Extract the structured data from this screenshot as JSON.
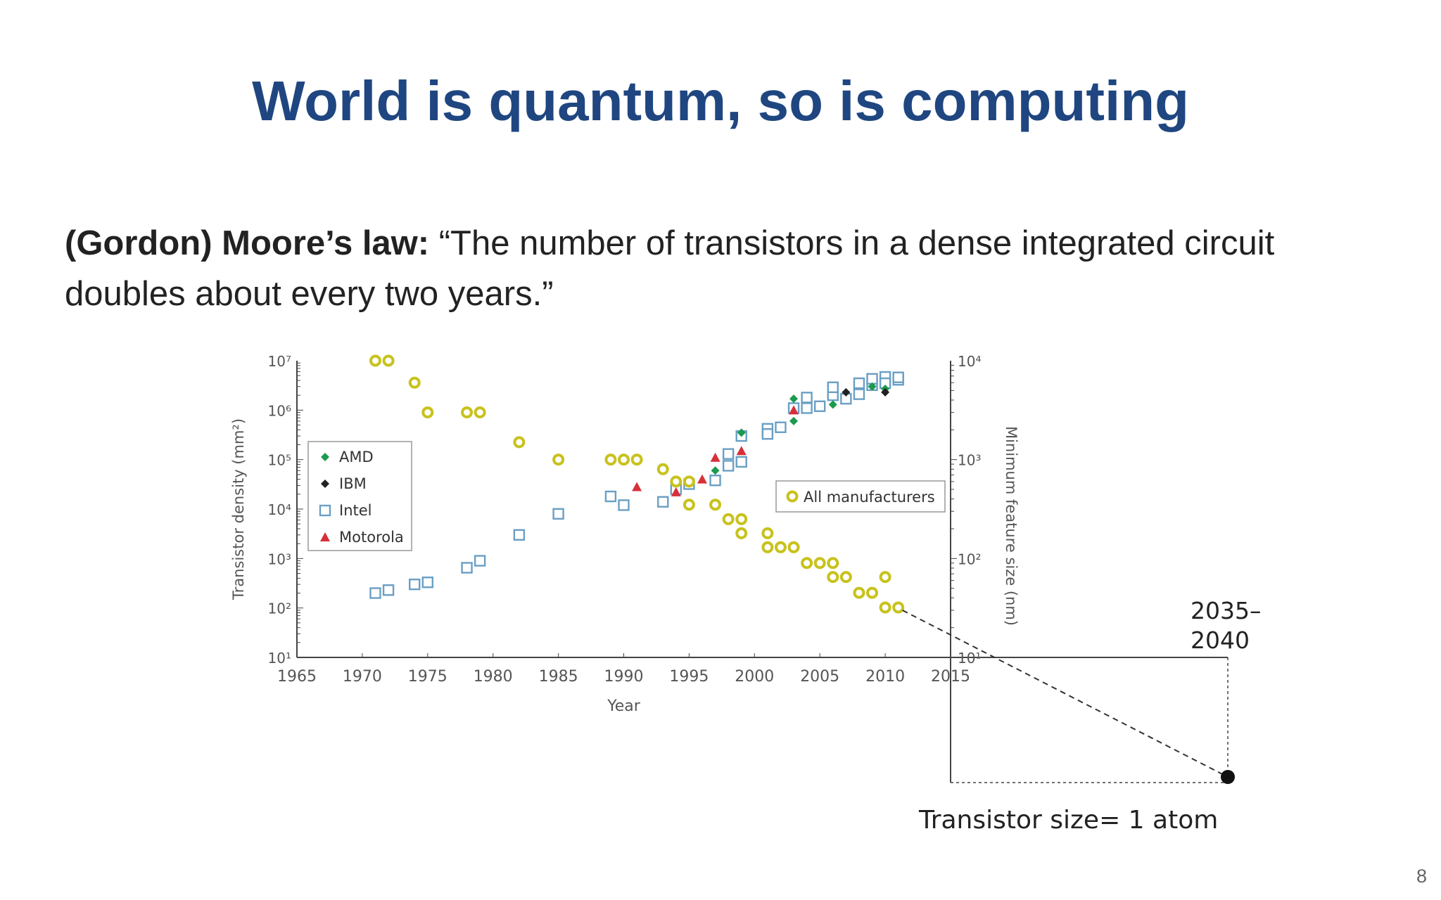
{
  "slide": {
    "title": "World is quantum, so is computing",
    "body_bold": "(Gordon) Moore’s law:",
    "body_quote": " “The number of transistors in a dense integrated circuit doubles about every two years.”",
    "page_number": "8"
  },
  "chart_data": {
    "type": "scatter",
    "xlabel": "Year",
    "ylabel": "Transistor density (mm²)",
    "y2label": "Minimum feature size (nm)",
    "xlim": [
      1965,
      2015
    ],
    "ylim": [
      10,
      10000000
    ],
    "y2lim": [
      10,
      10000
    ],
    "log_y": true,
    "x_ticks": [
      "1965",
      "1970",
      "1975",
      "1980",
      "1985",
      "1990",
      "1995",
      "2000",
      "2005",
      "2010",
      "2015"
    ],
    "y_ticks": [
      "10¹",
      "10²",
      "10³",
      "10⁴",
      "10⁵",
      "10⁶",
      "10⁷"
    ],
    "y2_ticks": [
      "10¹",
      "10²",
      "10³",
      "10⁴"
    ],
    "legend_left": [
      "AMD",
      "IBM",
      "Intel",
      "Motorola"
    ],
    "legend_right": [
      "All manufacturers"
    ],
    "colors": {
      "AMD": "#1c9a4e",
      "IBM": "#222222",
      "Intel": "#6a9fc4",
      "Motorola": "#d6303a",
      "All manufacturers": "#c8c21c"
    },
    "series": [
      {
        "name": "Intel",
        "axis": "left",
        "marker": "square",
        "points": [
          [
            1971,
            200
          ],
          [
            1972,
            230
          ],
          [
            1974,
            300
          ],
          [
            1975,
            330
          ],
          [
            1978,
            650
          ],
          [
            1979,
            900
          ],
          [
            1982,
            3000
          ],
          [
            1985,
            8000
          ],
          [
            1989,
            18000
          ],
          [
            1990,
            12000
          ],
          [
            1993,
            14000
          ],
          [
            1994,
            25000
          ],
          [
            1995,
            32000
          ],
          [
            1997,
            38000
          ],
          [
            1998,
            75000
          ],
          [
            1998,
            130000
          ],
          [
            1999,
            90000
          ],
          [
            1999,
            300000
          ],
          [
            2001,
            420000
          ],
          [
            2001,
            330000
          ],
          [
            2002,
            450000
          ],
          [
            2003,
            1100000
          ],
          [
            2004,
            1800000
          ],
          [
            2004,
            1100000
          ],
          [
            2005,
            1200000
          ],
          [
            2006,
            2000000
          ],
          [
            2006,
            2900000
          ],
          [
            2007,
            1700000
          ],
          [
            2008,
            2100000
          ],
          [
            2008,
            3500000
          ],
          [
            2009,
            3200000
          ],
          [
            2009,
            4300000
          ],
          [
            2010,
            4700000
          ],
          [
            2010,
            3500000
          ],
          [
            2011,
            4100000
          ],
          [
            2011,
            4600000
          ]
        ]
      },
      {
        "name": "AMD",
        "axis": "left",
        "marker": "diamond",
        "points": [
          [
            1997,
            60000
          ],
          [
            1999,
            350000
          ],
          [
            2003,
            1700000
          ],
          [
            2003,
            600000
          ],
          [
            2006,
            1300000
          ],
          [
            2009,
            3000000
          ],
          [
            2010,
            2700000
          ]
        ]
      },
      {
        "name": "IBM",
        "axis": "left",
        "marker": "diamond",
        "points": [
          [
            2007,
            2300000
          ],
          [
            2010,
            2300000
          ]
        ]
      },
      {
        "name": "Motorola",
        "axis": "left",
        "marker": "triangle",
        "points": [
          [
            1991,
            28000
          ],
          [
            1994,
            22000
          ],
          [
            1996,
            40000
          ],
          [
            1997,
            110000
          ],
          [
            1999,
            150000
          ],
          [
            2003,
            1000000
          ]
        ]
      },
      {
        "name": "All manufacturers",
        "axis": "right",
        "marker": "circle",
        "points": [
          [
            1971,
            10000
          ],
          [
            1972,
            10000
          ],
          [
            1974,
            6000
          ],
          [
            1975,
            3000
          ],
          [
            1978,
            3000
          ],
          [
            1979,
            3000
          ],
          [
            1982,
            1500
          ],
          [
            1985,
            1000
          ],
          [
            1989,
            1000
          ],
          [
            1990,
            1000
          ],
          [
            1991,
            1000
          ],
          [
            1993,
            800
          ],
          [
            1994,
            600
          ],
          [
            1995,
            600
          ],
          [
            1995,
            350
          ],
          [
            1997,
            350
          ],
          [
            1998,
            250
          ],
          [
            1999,
            250
          ],
          [
            1999,
            180
          ],
          [
            2001,
            180
          ],
          [
            2001,
            130
          ],
          [
            2002,
            130
          ],
          [
            2003,
            130
          ],
          [
            2004,
            90
          ],
          [
            2005,
            90
          ],
          [
            2006,
            90
          ],
          [
            2006,
            65
          ],
          [
            2007,
            65
          ],
          [
            2008,
            45
          ],
          [
            2009,
            45
          ],
          [
            2010,
            65
          ],
          [
            2010,
            32
          ],
          [
            2011,
            32
          ]
        ]
      }
    ],
    "annotations": {
      "projection_year": "2035–\n2040",
      "projection_label": "Transistor size= 1 atom"
    }
  }
}
